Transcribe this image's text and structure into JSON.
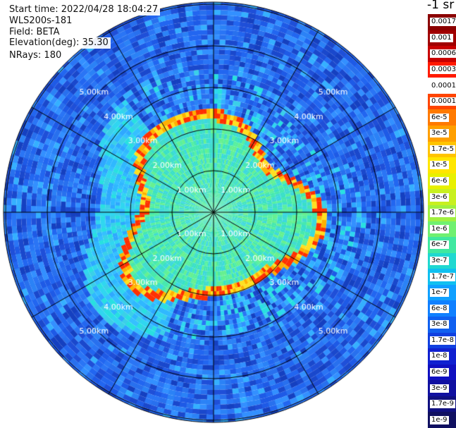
{
  "header": {
    "start_time": "Start time: 2022/04/28 18:04:27",
    "instrument": "WLS200s-181",
    "field": "Field: BETA",
    "elevation": "Elevation(deg): 35.30",
    "nrays": "NRays: 180"
  },
  "plot": {
    "range_rings": [
      "1.00km",
      "2.00km",
      "3.00km",
      "4.00km",
      "5.00km"
    ],
    "background_color": "#2a6ff0",
    "ring_color": "#000000"
  },
  "colorbar": {
    "title": "-1 sr",
    "labels": [
      "0.0017",
      "0.001",
      "0.0006",
      "0.0003",
      "0.00017",
      "0.0001",
      "6e-5",
      "3e-5",
      "1.7e-5",
      "1e-5",
      "6e-6",
      "3e-6",
      "1.7e-6",
      "1e-6",
      "6e-7",
      "3e-7",
      "1.7e-7",
      "1e-7",
      "6e-8",
      "3e-8",
      "1.7e-8",
      "1e-8",
      "6e-9",
      "3e-9",
      "1.7e-9",
      "1e-9"
    ],
    "colors": [
      "#8b0000",
      "#a00000",
      "#c80000",
      "#ff1a00",
      "#ffffff",
      "#ff4500",
      "#ff7a00",
      "#ff9f00",
      "#ffc400",
      "#ffe600",
      "#e8f000",
      "#c8f020",
      "#a0f040",
      "#70f070",
      "#40e8a0",
      "#20d8d0",
      "#10c0f0",
      "#10a0ff",
      "#1080ff",
      "#1060f0",
      "#1040e0",
      "#1020d0",
      "#1010c0",
      "#1010a0",
      "#101080",
      "#101060"
    ]
  }
}
